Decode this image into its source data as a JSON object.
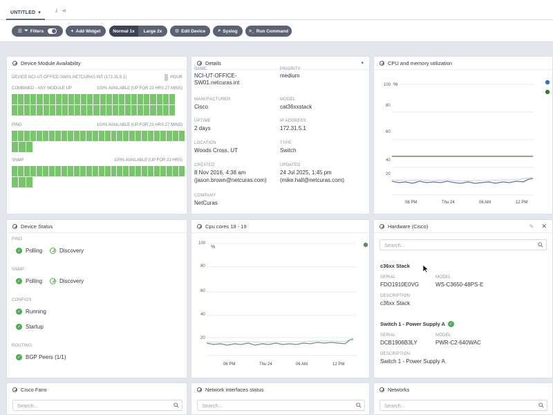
{
  "tab": {
    "label": "UNTITLED"
  },
  "toolbar": {
    "filters": "Filters",
    "add_widget": "Add Widget",
    "normal": "Normal 1x",
    "large": "Large 2x",
    "edit_device": "Edit Device",
    "syslog": "Syslog",
    "run_command": "Run Command"
  },
  "availability": {
    "title": "Device Module Availability",
    "device": "DEVICE NCI-UT-OFFICE-SW01.NETCURAS.INT (172.31.5.1)",
    "hour_label": "HOUR",
    "rows": [
      {
        "name": "COMBINED - ANY MODULE UP",
        "summary": "100% AVAILABLE (UP FOR 23 HRS 27 MINS)"
      },
      {
        "name": "PING",
        "summary": "100% AVAILABLE (UP FOR 23 HRS 27 MINS)"
      },
      {
        "name": "SNMP",
        "summary": "100% AVAILABLE (UP FOR 23 HRS)"
      }
    ]
  },
  "details": {
    "title": "Details",
    "fields": [
      {
        "label": "NAME",
        "value": "NCI-UT-OFFICE-SW01.netcuras.int"
      },
      {
        "label": "PRIORITY",
        "value": "medium"
      },
      {
        "label": "MANUFACTURER",
        "value": "Cisco"
      },
      {
        "label": "MODEL",
        "value": "cat36xxstack"
      },
      {
        "label": "UPTIME",
        "value": "2 days"
      },
      {
        "label": "IP ADDRESS",
        "value": "172.31.5.1"
      },
      {
        "label": "LOCATION",
        "value": "Woods Cross, UT"
      },
      {
        "label": "TYPE",
        "value": "Switch"
      },
      {
        "label": "CREATED",
        "value": "8 Nov 2016, 4:38 am",
        "sub": "(jason.brown@netcuras.com)"
      },
      {
        "label": "UPDATED",
        "value": "24 Jul 2025, 1:45 pm",
        "sub": "(mike.hall@netcuras.com)"
      },
      {
        "label": "COMPANY",
        "value": "NetCuras"
      }
    ]
  },
  "cpu_memory": {
    "title": "CPU and memory utilization",
    "unit": "%",
    "y_ticks": [
      "100",
      "80",
      "60",
      "40",
      "20"
    ],
    "x_ticks": [
      "06 PM",
      "Thu 24",
      "06 AM",
      "12 PM"
    ],
    "legend_colors": [
      "#3b6fc4",
      "#2f7d32"
    ]
  },
  "status": {
    "title": "Device Status",
    "groups": [
      {
        "label": "PING",
        "items": [
          "Polling",
          "Discovery"
        ]
      },
      {
        "label": "SNMP",
        "items": [
          "Polling",
          "Discovery"
        ]
      },
      {
        "label": "CONFIGS",
        "items": [
          "Running",
          "Startup"
        ]
      },
      {
        "label": "ROUTING",
        "items": [
          "BGP Peers (1/1)"
        ]
      }
    ]
  },
  "cpu_cores": {
    "title": "Cpu cores 19 - 19",
    "unit": "%",
    "y_ticks": [
      "100",
      "80",
      "60",
      "40",
      "20"
    ],
    "x_ticks": [
      "06 PM",
      "Thu 24",
      "06 AM",
      "12 PM"
    ]
  },
  "hardware": {
    "title": "Hardware (Cisco)",
    "search_placeholder": "Search...",
    "items": [
      {
        "title": "c36xx Stack",
        "serial_label": "SERIAL",
        "serial": "FDO1910E0VG",
        "model_label": "MODEL",
        "model": "WS-C3650-48PS-E",
        "desc_label": "DESCRIPTION",
        "desc": "c36xx Stack"
      },
      {
        "title": "Switch 1 - Power Supply A",
        "serial_label": "SERIAL",
        "serial": "DCB1906B3LY",
        "model_label": "MODEL",
        "model": "PWR-C2-640WAC",
        "desc_label": "DESCRIPTION",
        "desc": "Switch 1 - Power Supply A"
      }
    ]
  },
  "bottom": {
    "fans": {
      "title": "Cisco Fans",
      "placeholder": "Search..."
    },
    "interfaces": {
      "title": "Network interfaces status",
      "placeholder": "Search..."
    },
    "networks": {
      "title": "Networks",
      "placeholder": "Search..."
    }
  }
}
